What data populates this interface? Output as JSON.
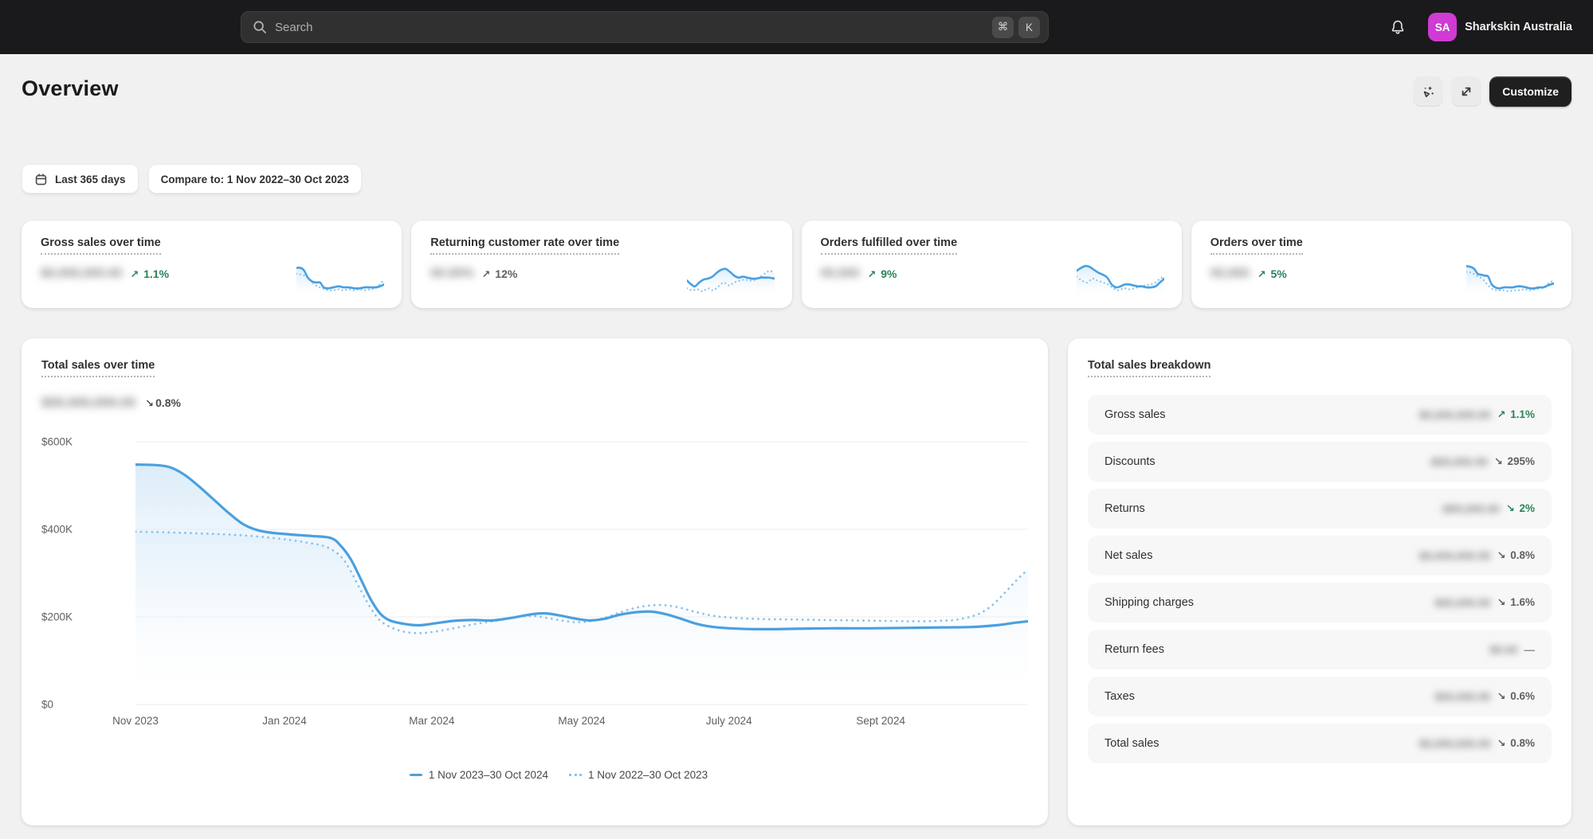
{
  "colors": {
    "accent_blue": "#4aa0e0",
    "compare_blue_dotted": "#8ac3ec",
    "success_green": "#29845a",
    "neutral_gray": "#616161",
    "avatar_magenta": "#cf3bd3",
    "topbar_bg": "#1a1a1c",
    "page_bg": "#f1f1f1"
  },
  "topbar": {
    "search_placeholder": "Search",
    "cmd_key": "⌘",
    "k_key": "K",
    "account_initials": "SA",
    "account_name": "Sharkskin Australia"
  },
  "header": {
    "title": "Overview",
    "customize_label": "Customize"
  },
  "filters": {
    "date_range": "Last 365 days",
    "compare_to": "Compare to: 1 Nov 2022–30 Oct 2023"
  },
  "metric_cards": [
    {
      "title": "Gross sales over time",
      "masked_value": "$0,000,000.00",
      "arrow": "↗",
      "change": "1.1%",
      "positive": true,
      "spark": {
        "solid": [
          [
            0,
            7
          ],
          [
            5,
            7
          ],
          [
            9,
            10
          ],
          [
            13,
            17
          ],
          [
            18,
            21
          ],
          [
            23,
            22
          ],
          [
            27,
            22
          ],
          [
            31,
            27
          ],
          [
            36,
            28
          ],
          [
            42,
            27
          ],
          [
            48,
            26
          ],
          [
            54,
            27
          ],
          [
            60,
            27
          ],
          [
            66,
            28
          ],
          [
            72,
            28
          ],
          [
            78,
            27
          ],
          [
            84,
            27
          ],
          [
            90,
            27
          ],
          [
            95,
            26
          ],
          [
            100,
            24
          ]
        ],
        "dotted": [
          [
            0,
            13
          ],
          [
            6,
            14
          ],
          [
            12,
            16
          ],
          [
            18,
            22
          ],
          [
            24,
            26
          ],
          [
            30,
            28
          ],
          [
            36,
            30
          ],
          [
            42,
            30
          ],
          [
            48,
            29
          ],
          [
            54,
            30
          ],
          [
            60,
            29
          ],
          [
            66,
            30
          ],
          [
            72,
            29
          ],
          [
            78,
            30
          ],
          [
            84,
            29
          ],
          [
            90,
            28
          ],
          [
            95,
            24
          ],
          [
            100,
            19
          ]
        ]
      }
    },
    {
      "title": "Returning customer rate over time",
      "masked_value": "00.00%",
      "arrow": "↗",
      "change": "12%",
      "positive": false,
      "spark": {
        "solid": [
          [
            0,
            20
          ],
          [
            5,
            24
          ],
          [
            9,
            26
          ],
          [
            14,
            22
          ],
          [
            19,
            19
          ],
          [
            24,
            18
          ],
          [
            29,
            16
          ],
          [
            34,
            12
          ],
          [
            39,
            9
          ],
          [
            44,
            8
          ],
          [
            49,
            11
          ],
          [
            54,
            15
          ],
          [
            59,
            17
          ],
          [
            64,
            16
          ],
          [
            69,
            17
          ],
          [
            74,
            18
          ],
          [
            79,
            18
          ],
          [
            84,
            17
          ],
          [
            89,
            17
          ],
          [
            94,
            17
          ],
          [
            100,
            18
          ]
        ],
        "dotted": [
          [
            0,
            28
          ],
          [
            6,
            30
          ],
          [
            12,
            29
          ],
          [
            18,
            31
          ],
          [
            24,
            28
          ],
          [
            30,
            30
          ],
          [
            36,
            26
          ],
          [
            42,
            22
          ],
          [
            48,
            25
          ],
          [
            54,
            22
          ],
          [
            60,
            20
          ],
          [
            66,
            19
          ],
          [
            72,
            20
          ],
          [
            78,
            19
          ],
          [
            84,
            16
          ],
          [
            90,
            12
          ],
          [
            95,
            10
          ],
          [
            100,
            13
          ]
        ]
      }
    },
    {
      "title": "Orders fulfilled over time",
      "masked_value": "00,000",
      "arrow": "↗",
      "change": "9%",
      "positive": true,
      "spark": {
        "solid": [
          [
            0,
            10
          ],
          [
            5,
            7
          ],
          [
            10,
            5
          ],
          [
            15,
            6
          ],
          [
            20,
            9
          ],
          [
            25,
            12
          ],
          [
            30,
            14
          ],
          [
            35,
            17
          ],
          [
            40,
            24
          ],
          [
            45,
            27
          ],
          [
            50,
            26
          ],
          [
            55,
            24
          ],
          [
            60,
            24
          ],
          [
            65,
            25
          ],
          [
            70,
            26
          ],
          [
            75,
            26
          ],
          [
            80,
            27
          ],
          [
            85,
            27
          ],
          [
            90,
            26
          ],
          [
            95,
            22
          ],
          [
            100,
            18
          ]
        ],
        "dotted": [
          [
            0,
            16
          ],
          [
            6,
            20
          ],
          [
            12,
            22
          ],
          [
            18,
            18
          ],
          [
            24,
            20
          ],
          [
            30,
            22
          ],
          [
            36,
            24
          ],
          [
            42,
            28
          ],
          [
            48,
            30
          ],
          [
            54,
            28
          ],
          [
            60,
            29
          ],
          [
            66,
            28
          ],
          [
            72,
            26
          ],
          [
            78,
            25
          ],
          [
            84,
            24
          ],
          [
            90,
            22
          ],
          [
            95,
            18
          ],
          [
            100,
            16
          ]
        ]
      }
    },
    {
      "title": "Orders over time",
      "masked_value": "00,000",
      "arrow": "↗",
      "change": "5%",
      "positive": true,
      "spark": {
        "solid": [
          [
            0,
            5
          ],
          [
            5,
            6
          ],
          [
            9,
            8
          ],
          [
            13,
            13
          ],
          [
            17,
            14
          ],
          [
            21,
            15
          ],
          [
            25,
            16
          ],
          [
            29,
            24
          ],
          [
            33,
            27
          ],
          [
            38,
            28
          ],
          [
            43,
            27
          ],
          [
            48,
            27
          ],
          [
            53,
            27
          ],
          [
            58,
            26
          ],
          [
            63,
            26
          ],
          [
            68,
            27
          ],
          [
            73,
            28
          ],
          [
            78,
            28
          ],
          [
            83,
            27
          ],
          [
            88,
            27
          ],
          [
            93,
            25
          ],
          [
            100,
            23
          ]
        ],
        "dotted": [
          [
            0,
            11
          ],
          [
            6,
            12
          ],
          [
            12,
            15
          ],
          [
            18,
            18
          ],
          [
            24,
            24
          ],
          [
            30,
            29
          ],
          [
            36,
            30
          ],
          [
            42,
            30
          ],
          [
            48,
            31
          ],
          [
            54,
            30
          ],
          [
            60,
            30
          ],
          [
            66,
            29
          ],
          [
            72,
            30
          ],
          [
            78,
            29
          ],
          [
            84,
            28
          ],
          [
            90,
            26
          ],
          [
            95,
            22
          ],
          [
            100,
            20
          ]
        ]
      }
    }
  ],
  "chart_data": {
    "type": "line",
    "title": "Total sales over time",
    "masked_value": "$00,000,000.00",
    "change_arrow": "↘",
    "change": "0.8%",
    "values_unit": "USD (thousands on y axis)",
    "ylim": [
      0,
      600
    ],
    "y_ticks": [
      {
        "label": "$600K",
        "value": 600
      },
      {
        "label": "$400K",
        "value": 400
      },
      {
        "label": "$200K",
        "value": 200
      },
      {
        "label": "$0",
        "value": 0
      }
    ],
    "x_ticks": [
      {
        "label": "Nov 2023",
        "f": 0.0
      },
      {
        "label": "Jan 2024",
        "f": 0.167
      },
      {
        "label": "Mar 2024",
        "f": 0.332
      },
      {
        "label": "May 2024",
        "f": 0.5
      },
      {
        "label": "July 2024",
        "f": 0.665
      },
      {
        "label": "Sept 2024",
        "f": 0.835
      }
    ],
    "grid": true,
    "legend_position": "bottom",
    "xmax_days": 365,
    "series": [
      {
        "name": "1 Nov 2023–30 Oct 2024",
        "style": "solid",
        "points": [
          [
            0,
            548
          ],
          [
            8,
            547
          ],
          [
            14,
            542
          ],
          [
            20,
            525
          ],
          [
            26,
            498
          ],
          [
            32,
            468
          ],
          [
            38,
            438
          ],
          [
            44,
            412
          ],
          [
            50,
            398
          ],
          [
            56,
            392
          ],
          [
            64,
            388
          ],
          [
            72,
            385
          ],
          [
            80,
            380
          ],
          [
            84,
            362
          ],
          [
            88,
            332
          ],
          [
            92,
            288
          ],
          [
            96,
            242
          ],
          [
            100,
            208
          ],
          [
            104,
            192
          ],
          [
            110,
            184
          ],
          [
            116,
            181
          ],
          [
            122,
            185
          ],
          [
            130,
            191
          ],
          [
            138,
            193
          ],
          [
            146,
            192
          ],
          [
            154,
            198
          ],
          [
            162,
            206
          ],
          [
            168,
            208
          ],
          [
            174,
            203
          ],
          [
            180,
            196
          ],
          [
            186,
            192
          ],
          [
            192,
            196
          ],
          [
            198,
            205
          ],
          [
            205,
            211
          ],
          [
            211,
            212
          ],
          [
            217,
            206
          ],
          [
            223,
            196
          ],
          [
            229,
            185
          ],
          [
            235,
            178
          ],
          [
            243,
            174
          ],
          [
            255,
            172
          ],
          [
            270,
            173
          ],
          [
            285,
            174
          ],
          [
            300,
            174
          ],
          [
            315,
            175
          ],
          [
            330,
            176
          ],
          [
            342,
            177
          ],
          [
            352,
            181
          ],
          [
            360,
            187
          ],
          [
            365,
            190
          ]
        ]
      },
      {
        "name": "1 Nov 2022–30 Oct 2023",
        "style": "dotted",
        "points": [
          [
            0,
            395
          ],
          [
            15,
            393
          ],
          [
            30,
            390
          ],
          [
            45,
            386
          ],
          [
            60,
            378
          ],
          [
            70,
            370
          ],
          [
            78,
            360
          ],
          [
            84,
            338
          ],
          [
            88,
            305
          ],
          [
            92,
            262
          ],
          [
            96,
            222
          ],
          [
            100,
            192
          ],
          [
            105,
            175
          ],
          [
            110,
            166
          ],
          [
            116,
            163
          ],
          [
            122,
            166
          ],
          [
            130,
            174
          ],
          [
            138,
            183
          ],
          [
            146,
            190
          ],
          [
            152,
            196
          ],
          [
            158,
            201
          ],
          [
            163,
            202
          ],
          [
            168,
            198
          ],
          [
            174,
            192
          ],
          [
            180,
            188
          ],
          [
            186,
            190
          ],
          [
            192,
            198
          ],
          [
            198,
            210
          ],
          [
            204,
            220
          ],
          [
            210,
            226
          ],
          [
            216,
            227
          ],
          [
            222,
            222
          ],
          [
            228,
            213
          ],
          [
            234,
            205
          ],
          [
            240,
            200
          ],
          [
            248,
            197
          ],
          [
            258,
            195
          ],
          [
            270,
            194
          ],
          [
            282,
            193
          ],
          [
            294,
            192
          ],
          [
            306,
            191
          ],
          [
            318,
            190
          ],
          [
            328,
            191
          ],
          [
            336,
            194
          ],
          [
            344,
            205
          ],
          [
            350,
            225
          ],
          [
            356,
            258
          ],
          [
            361,
            288
          ],
          [
            365,
            308
          ]
        ]
      }
    ]
  },
  "breakdown": {
    "title": "Total sales breakdown",
    "rows": [
      {
        "label": "Gross sales",
        "masked_value": "$0,000,000.00",
        "arrow": "↗",
        "change": "1.1%",
        "positive": true
      },
      {
        "label": "Discounts",
        "masked_value": "-$00,000.00",
        "arrow": "↘",
        "change": "295%",
        "positive": false
      },
      {
        "label": "Returns",
        "masked_value": "-$00,000.00",
        "arrow": "↘",
        "change": "2%",
        "positive": true
      },
      {
        "label": "Net sales",
        "masked_value": "$0,000,000.00",
        "arrow": "↘",
        "change": "0.8%",
        "positive": false
      },
      {
        "label": "Shipping charges",
        "masked_value": "$00,000.00",
        "arrow": "↘",
        "change": "1.6%",
        "positive": false
      },
      {
        "label": "Return fees",
        "masked_value": "$0.00",
        "arrow": "",
        "change": "—",
        "positive": false
      },
      {
        "label": "Taxes",
        "masked_value": "$00,000.00",
        "arrow": "↘",
        "change": "0.6%",
        "positive": false
      },
      {
        "label": "Total sales",
        "masked_value": "$0,000,000.00",
        "arrow": "↘",
        "change": "0.8%",
        "positive": false
      }
    ]
  }
}
